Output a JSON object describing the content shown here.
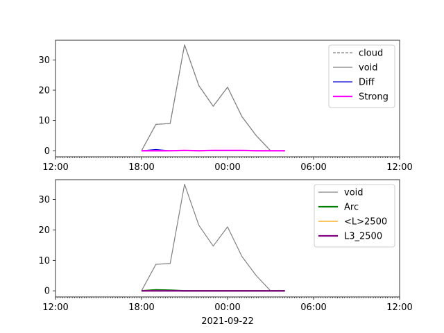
{
  "chart_data": [
    {
      "type": "line",
      "x": [
        "18:00",
        "19:00",
        "20:00",
        "21:00",
        "22:00",
        "23:00",
        "00:00",
        "01:00",
        "02:00",
        "03:00",
        "04:00"
      ],
      "xlim": [
        "12:00",
        "12:00 (+1d)"
      ],
      "xticks": [
        "12:00",
        "18:00",
        "00:00",
        "06:00",
        "12:00"
      ],
      "ylim": [
        -2,
        36.5
      ],
      "yticks": [
        0,
        10,
        20,
        30
      ],
      "legend_position": "upper right",
      "series": [
        {
          "name": "cloud",
          "color": "#808080",
          "style": "dashed",
          "values": [
            0,
            8.7,
            9,
            35,
            21.5,
            14.7,
            21,
            11.3,
            5,
            0,
            0
          ]
        },
        {
          "name": "void",
          "color": "#808080",
          "style": "solid",
          "values": [
            0,
            8.7,
            9,
            35,
            21.5,
            14.7,
            21,
            11.3,
            5,
            0,
            0
          ]
        },
        {
          "name": "Diff",
          "color": "#0000cc",
          "style": "solid",
          "values": [
            0,
            0.4,
            0,
            0,
            0,
            0,
            0,
            0,
            0,
            0,
            0
          ]
        },
        {
          "name": "Strong",
          "color": "#ff00ff",
          "style": "solid-thick",
          "values": [
            0,
            0,
            0,
            0.1,
            0,
            0.1,
            0.1,
            0.1,
            0,
            0,
            0
          ]
        }
      ]
    },
    {
      "type": "line",
      "x": [
        "18:00",
        "19:00",
        "20:00",
        "21:00",
        "22:00",
        "23:00",
        "00:00",
        "01:00",
        "02:00",
        "03:00",
        "04:00"
      ],
      "xlim": [
        "12:00",
        "12:00 (+1d)"
      ],
      "xticks": [
        "12:00",
        "18:00",
        "00:00",
        "06:00",
        "12:00"
      ],
      "xlabel": "2021-09-22",
      "ylim": [
        -2,
        36.5
      ],
      "yticks": [
        0,
        10,
        20,
        30
      ],
      "legend_position": "upper right",
      "series": [
        {
          "name": "void",
          "color": "#808080",
          "style": "solid",
          "values": [
            0,
            8.7,
            9,
            35,
            21.5,
            14.7,
            21,
            11.3,
            5,
            0,
            0
          ]
        },
        {
          "name": "Arc",
          "color": "#008000",
          "style": "solid-thick",
          "values": [
            0,
            0.3,
            0.2,
            0,
            0,
            0,
            0,
            0,
            0,
            0,
            0
          ]
        },
        {
          "name": "<L>2500",
          "color": "#ffa500",
          "style": "solid",
          "values": [
            0,
            0.1,
            0,
            0,
            0,
            0,
            0,
            0,
            0,
            0,
            0
          ]
        },
        {
          "name": "L3_2500",
          "color": "#800080",
          "style": "solid-thick",
          "values": [
            0,
            0,
            0,
            0,
            0,
            0,
            0,
            0,
            0,
            0,
            0
          ]
        }
      ]
    }
  ]
}
